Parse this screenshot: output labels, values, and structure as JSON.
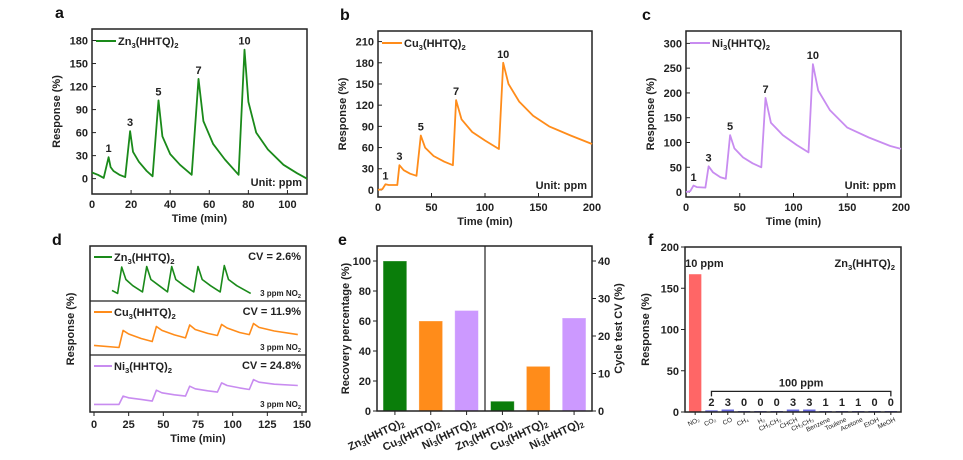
{
  "figure": {
    "panels": [
      "a",
      "b",
      "c",
      "d",
      "e",
      "f"
    ]
  },
  "chart_data": [
    {
      "panel": "a",
      "type": "line",
      "series_name": "Zn3(HHTQ)2",
      "legend": {
        "label_main": "Zn",
        "sub1": "3",
        "label_mid": "(HHTQ)",
        "sub2": "2",
        "placement": "top-left"
      },
      "color": "#1a8a1a",
      "xlabel": "Time (min)",
      "ylabel": "Response (%)",
      "xlim": [
        0,
        110
      ],
      "ylim": [
        -20,
        195
      ],
      "xticks": [
        0,
        20,
        40,
        60,
        80,
        100
      ],
      "yticks": [
        0,
        30,
        60,
        90,
        120,
        150,
        180
      ],
      "annotation": "Unit: ppm",
      "peak_labels": [
        {
          "text": "1",
          "x": 8.5,
          "y": 28
        },
        {
          "text": "3",
          "x": 19.5,
          "y": 62
        },
        {
          "text": "5",
          "x": 34,
          "y": 102
        },
        {
          "text": "7",
          "x": 54.5,
          "y": 130
        },
        {
          "text": "10",
          "x": 78,
          "y": 168
        }
      ],
      "points": [
        [
          0,
          8
        ],
        [
          3,
          5
        ],
        [
          6,
          1
        ],
        [
          8.5,
          28
        ],
        [
          9.5,
          15
        ],
        [
          11,
          10
        ],
        [
          14,
          5
        ],
        [
          17,
          2
        ],
        [
          19.5,
          62
        ],
        [
          21,
          35
        ],
        [
          24,
          22
        ],
        [
          28,
          10
        ],
        [
          31,
          3
        ],
        [
          34,
          102
        ],
        [
          36,
          55
        ],
        [
          40,
          32
        ],
        [
          45,
          18
        ],
        [
          51,
          5
        ],
        [
          54.5,
          130
        ],
        [
          57,
          75
        ],
        [
          62,
          45
        ],
        [
          68,
          25
        ],
        [
          75,
          5
        ],
        [
          78,
          168
        ],
        [
          80,
          100
        ],
        [
          84,
          60
        ],
        [
          90,
          38
        ],
        [
          98,
          18
        ],
        [
          105,
          7
        ],
        [
          110,
          0
        ]
      ]
    },
    {
      "panel": "b",
      "type": "line",
      "series_name": "Cu3(HHTQ)2",
      "legend": {
        "label_main": "Cu",
        "sub1": "3",
        "label_mid": "(HHTQ)",
        "sub2": "2",
        "placement": "top-left"
      },
      "color": "#ff8c1a",
      "xlabel": "Time (min)",
      "ylabel": "Response (%)",
      "xlim": [
        0,
        200
      ],
      "ylim": [
        -10,
        225
      ],
      "xticks": [
        0,
        50,
        100,
        150,
        200
      ],
      "yticks": [
        0,
        30,
        60,
        90,
        120,
        150,
        180,
        210
      ],
      "annotation": "Unit: ppm",
      "peak_labels": [
        {
          "text": "1",
          "x": 7,
          "y": 8
        },
        {
          "text": "3",
          "x": 20,
          "y": 35
        },
        {
          "text": "5",
          "x": 40,
          "y": 77
        },
        {
          "text": "7",
          "x": 73,
          "y": 127
        },
        {
          "text": "10",
          "x": 117,
          "y": 180
        }
      ],
      "points": [
        [
          0,
          0
        ],
        [
          4,
          1
        ],
        [
          7,
          8
        ],
        [
          10,
          7
        ],
        [
          18,
          7
        ],
        [
          20,
          35
        ],
        [
          24,
          28
        ],
        [
          30,
          23
        ],
        [
          36,
          20
        ],
        [
          40,
          77
        ],
        [
          44,
          60
        ],
        [
          52,
          48
        ],
        [
          62,
          40
        ],
        [
          70,
          35
        ],
        [
          73,
          127
        ],
        [
          78,
          100
        ],
        [
          88,
          82
        ],
        [
          100,
          70
        ],
        [
          113,
          58
        ],
        [
          117,
          180
        ],
        [
          122,
          150
        ],
        [
          132,
          125
        ],
        [
          145,
          105
        ],
        [
          160,
          90
        ],
        [
          180,
          77
        ],
        [
          200,
          65
        ]
      ]
    },
    {
      "panel": "c",
      "type": "line",
      "series_name": "Ni3(HHTQ)2",
      "legend": {
        "label_main": "Ni",
        "sub1": "3",
        "label_mid": "(HHTQ)",
        "sub2": "2",
        "placement": "top-left"
      },
      "color": "#c88cf0",
      "xlabel": "Time (min)",
      "ylabel": "Response (%)",
      "xlim": [
        0,
        200
      ],
      "ylim": [
        -10,
        325
      ],
      "xticks": [
        0,
        50,
        100,
        150,
        200
      ],
      "yticks": [
        0,
        50,
        100,
        150,
        200,
        250,
        300
      ],
      "annotation": "Unit: ppm",
      "peak_labels": [
        {
          "text": "1",
          "x": 7,
          "y": 12
        },
        {
          "text": "3",
          "x": 21,
          "y": 52
        },
        {
          "text": "5",
          "x": 41,
          "y": 115
        },
        {
          "text": "7",
          "x": 74,
          "y": 190
        },
        {
          "text": "10",
          "x": 118,
          "y": 258
        }
      ],
      "points": [
        [
          0,
          0
        ],
        [
          4,
          2
        ],
        [
          7,
          13
        ],
        [
          10,
          10
        ],
        [
          18,
          9
        ],
        [
          21,
          52
        ],
        [
          25,
          40
        ],
        [
          32,
          30
        ],
        [
          37,
          27
        ],
        [
          41,
          115
        ],
        [
          45,
          88
        ],
        [
          53,
          70
        ],
        [
          62,
          58
        ],
        [
          70,
          50
        ],
        [
          74,
          190
        ],
        [
          79,
          140
        ],
        [
          90,
          115
        ],
        [
          103,
          95
        ],
        [
          114,
          80
        ],
        [
          118,
          258
        ],
        [
          123,
          205
        ],
        [
          134,
          165
        ],
        [
          150,
          130
        ],
        [
          170,
          110
        ],
        [
          190,
          93
        ],
        [
          200,
          87
        ]
      ]
    },
    {
      "panel": "d",
      "type": "line",
      "xlabel": "Time (min)",
      "ylabel": "Response (%)",
      "xlim": [
        0,
        150
      ],
      "xticks": [
        0,
        25,
        50,
        75,
        100,
        125,
        150
      ],
      "subplots": [
        {
          "series_name": "Zn3(HHTQ)2",
          "legend": {
            "label_main": "Zn",
            "sub1": "3",
            "label_mid": "(HHTQ)",
            "sub2": "2"
          },
          "cv_text": "CV = 2.6%",
          "gas_text": "3 ppm NO",
          "gas_sub": "2",
          "color": "#1a8a1a",
          "points": [
            [
              13,
              0.15
            ],
            [
              17,
              0.05
            ],
            [
              20,
              0.9
            ],
            [
              23,
              0.5
            ],
            [
              28,
              0.3
            ],
            [
              35,
              0.1
            ],
            [
              38,
              0.92
            ],
            [
              41,
              0.5
            ],
            [
              47,
              0.3
            ],
            [
              53,
              0.1
            ],
            [
              56,
              0.92
            ],
            [
              59,
              0.5
            ],
            [
              65,
              0.3
            ],
            [
              72,
              0.1
            ],
            [
              75,
              0.92
            ],
            [
              78,
              0.5
            ],
            [
              84,
              0.3
            ],
            [
              91,
              0.1
            ],
            [
              94,
              0.95
            ],
            [
              97,
              0.5
            ],
            [
              103,
              0.3
            ],
            [
              113,
              0.05
            ]
          ]
        },
        {
          "series_name": "Cu3(HHTQ)2",
          "legend": {
            "label_main": "Cu",
            "sub1": "3",
            "label_mid": "(HHTQ)",
            "sub2": "2"
          },
          "cv_text": "CV = 11.9%",
          "gas_text": "3 ppm NO",
          "gas_sub": "2",
          "color": "#ff8c1a",
          "points": [
            [
              0,
              0.12
            ],
            [
              18,
              0.05
            ],
            [
              21,
              0.62
            ],
            [
              25,
              0.5
            ],
            [
              34,
              0.35
            ],
            [
              42,
              0.25
            ],
            [
              45,
              0.75
            ],
            [
              49,
              0.62
            ],
            [
              58,
              0.47
            ],
            [
              66,
              0.37
            ],
            [
              69,
              0.8
            ],
            [
              73,
              0.65
            ],
            [
              82,
              0.52
            ],
            [
              89,
              0.45
            ],
            [
              92,
              0.82
            ],
            [
              96,
              0.7
            ],
            [
              105,
              0.55
            ],
            [
              112,
              0.48
            ],
            [
              115,
              0.85
            ],
            [
              119,
              0.72
            ],
            [
              130,
              0.6
            ],
            [
              147,
              0.48
            ]
          ]
        },
        {
          "series_name": "Ni3(HHTQ)2",
          "legend": {
            "label_main": "Ni",
            "sub1": "3",
            "label_mid": "(HHTQ)",
            "sub2": "2"
          },
          "cv_text": "CV = 24.8%",
          "gas_text": "3 ppm NO",
          "gas_sub": "2",
          "color": "#c88cf0",
          "points": [
            [
              0,
              0.05
            ],
            [
              18,
              0.05
            ],
            [
              21,
              0.3
            ],
            [
              25,
              0.25
            ],
            [
              34,
              0.2
            ],
            [
              42,
              0.15
            ],
            [
              45,
              0.48
            ],
            [
              49,
              0.4
            ],
            [
              58,
              0.34
            ],
            [
              66,
              0.3
            ],
            [
              69,
              0.6
            ],
            [
              73,
              0.52
            ],
            [
              82,
              0.46
            ],
            [
              89,
              0.42
            ],
            [
              92,
              0.7
            ],
            [
              96,
              0.62
            ],
            [
              105,
              0.55
            ],
            [
              112,
              0.5
            ],
            [
              115,
              0.8
            ],
            [
              119,
              0.72
            ],
            [
              130,
              0.66
            ],
            [
              147,
              0.62
            ]
          ]
        }
      ]
    },
    {
      "panel": "e",
      "type": "bar",
      "ylabel_left": "Recovery percentage (%)",
      "ylabel_right": "Cycle test CV (%)",
      "ylim_left": [
        0,
        110
      ],
      "ylim_right": [
        0,
        44
      ],
      "yticks_left": [
        0,
        20,
        40,
        60,
        80,
        100
      ],
      "yticks_right": [
        0,
        10,
        20,
        30,
        40
      ],
      "categories": [
        {
          "main": "Zn",
          "sub1": "3",
          "mid": "(HHTQ)",
          "sub2": "2"
        },
        {
          "main": "Cu",
          "sub1": "3",
          "mid": "(HHTQ)",
          "sub2": "2"
        },
        {
          "main": "Ni",
          "sub1": "3",
          "mid": "(HHTQ)",
          "sub2": "2"
        },
        {
          "main": "Zn",
          "sub1": "3",
          "mid": "(HHTQ)",
          "sub2": "2"
        },
        {
          "main": "Cu",
          "sub1": "3",
          "mid": "(HHTQ)",
          "sub2": "2"
        },
        {
          "main": "Ni",
          "sub1": "3",
          "mid": "(HHTQ)",
          "sub2": "2"
        }
      ],
      "series": [
        {
          "name": "Recovery percentage",
          "axis": "left",
          "values": [
            100,
            60,
            67
          ],
          "colors": [
            "#0a7d0a",
            "#ff8c1a",
            "#cc99ff"
          ]
        },
        {
          "name": "Cycle test CV",
          "axis": "right",
          "values": [
            2.6,
            11.9,
            24.8
          ],
          "colors": [
            "#0a7d0a",
            "#ff8c1a",
            "#cc99ff"
          ]
        }
      ]
    },
    {
      "panel": "f",
      "type": "bar",
      "ylabel": "Response (%)",
      "ylim": [
        0,
        200
      ],
      "yticks": [
        0,
        50,
        100,
        150,
        200
      ],
      "title_main": "Zn",
      "title_sub1": "3",
      "title_mid": "(HHTQ)",
      "title_sub2": "2",
      "annotation_nO2": "10 ppm",
      "annotation_bracket": "100 ppm",
      "categories": [
        "NO2",
        "CO2",
        "CO",
        "CH4",
        "H2",
        "CH2CH2",
        "CHCH",
        "CH3CH3",
        "Benzene",
        "Toulene",
        "Acetone",
        "EtOH",
        "MeOH"
      ],
      "category_display": [
        "NO₂",
        "CO₂",
        "CO",
        "CH₄",
        "H₂",
        "CH₂CH₂",
        "CHCH",
        "CH₃CH₃",
        "Benzene",
        "Toulene",
        "Acetone",
        "EtOH",
        "MeOH"
      ],
      "values": [
        167,
        2,
        3,
        0,
        0,
        0,
        3,
        3,
        1,
        1,
        1,
        0,
        0
      ],
      "value_labels": [
        "",
        "2",
        "3",
        "0",
        "0",
        "0",
        "3",
        "3",
        "1",
        "1",
        "1",
        "0",
        "0"
      ],
      "colors": {
        "NO2": "#ff6666",
        "others": "#6666dd"
      }
    }
  ]
}
